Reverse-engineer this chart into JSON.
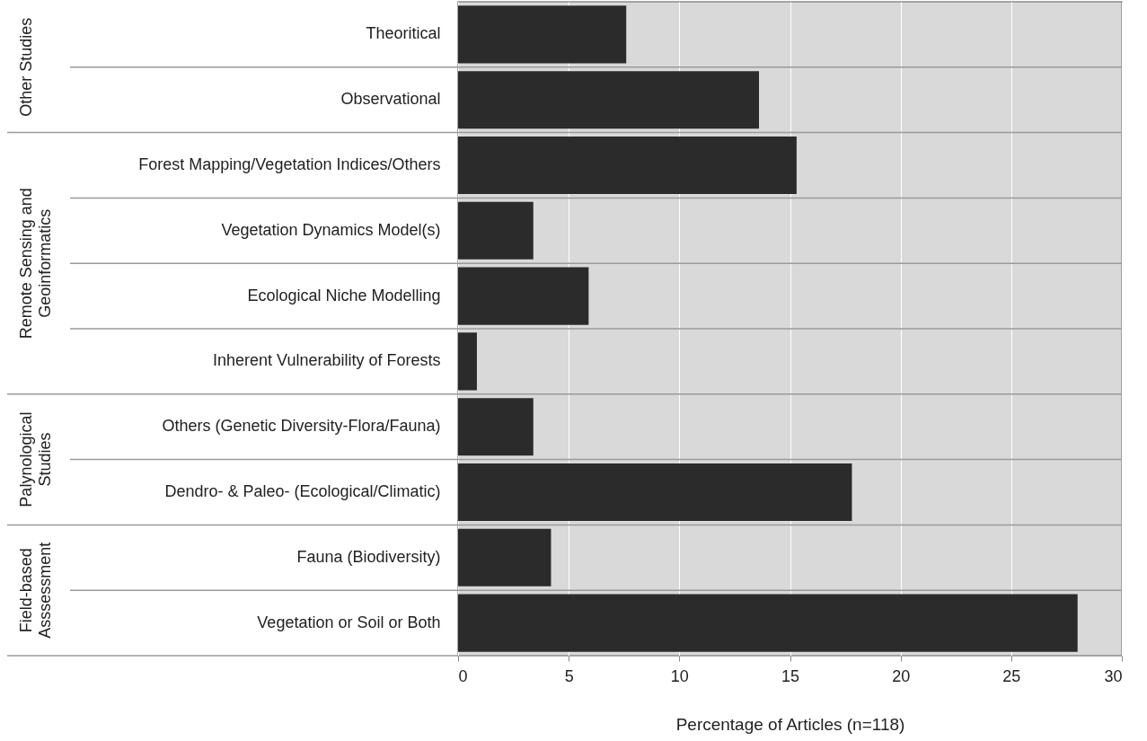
{
  "chart_data": {
    "type": "bar",
    "orientation": "horizontal",
    "categories": [
      "Theoritical",
      "Observational",
      "Forest Mapping/Vegetation Indices/Others",
      "Vegetation Dynamics Model(s)",
      "Ecological Niche Modelling",
      "Inherent Vulnerability of Forests",
      "Others  (Genetic Diversity-Flora/Fauna)",
      "Dendro- & Paleo- (Ecological/Climatic)",
      "Fauna (Biodiversity)",
      "Vegetation or Soil or Both"
    ],
    "values": [
      7.6,
      13.6,
      15.3,
      3.4,
      5.9,
      0.85,
      3.4,
      17.8,
      4.2,
      28.0
    ],
    "color": "#2b2b2b",
    "xlabel": "Percentage of Articles (n=118)",
    "xlim": [
      0,
      30
    ],
    "xticks": [
      0,
      5,
      10,
      15,
      20,
      25,
      30
    ],
    "grid": "x",
    "annotations": [
      "Other Studies",
      "Remote Sensing and\nGeoinformatics",
      "Palynological\nStudies",
      "Field-based\nAsssessment"
    ]
  }
}
